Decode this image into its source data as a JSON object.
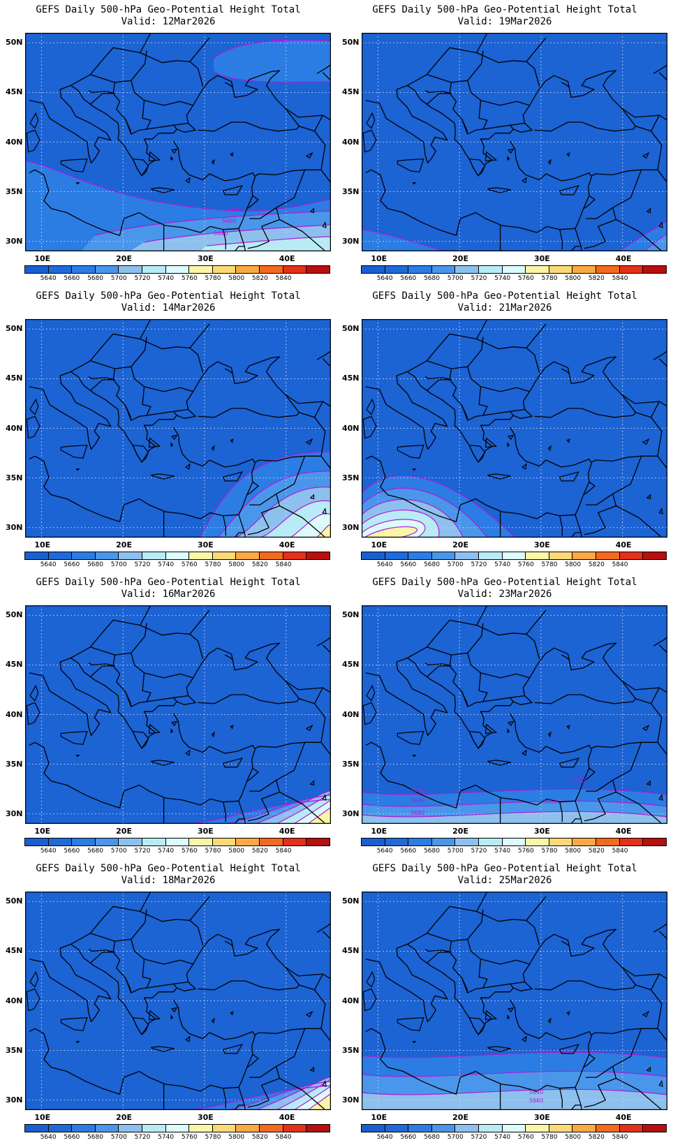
{
  "panels": [
    {
      "title": "GEFS Daily 500-hPa Geo-Potential Height Total",
      "valid": "Valid: 12Mar2026",
      "scenario": "north_south",
      "contour_labels": [
        "5640",
        "5640",
        "5660",
        "5680"
      ]
    },
    {
      "title": "GEFS Daily 500-hPa Geo-Potential Height Total",
      "valid": "Valid: 19Mar2026",
      "scenario": "corners",
      "contour_labels": []
    },
    {
      "title": "GEFS Daily 500-hPa Geo-Potential Height Total",
      "valid": "Valid: 14Mar2026",
      "scenario": "southeast",
      "contour_labels": []
    },
    {
      "title": "GEFS Daily 500-hPa Geo-Potential Height Total",
      "valid": "Valid: 21Mar2026",
      "scenario": "southwest",
      "contour_labels": []
    },
    {
      "title": "GEFS Daily 500-hPa Geo-Potential Height Total",
      "valid": "Valid: 16Mar2026",
      "scenario": "se_light",
      "contour_labels": []
    },
    {
      "title": "GEFS Daily 500-hPa Geo-Potential Height Total",
      "valid": "Valid: 23Mar2026",
      "scenario": "south_band",
      "contour_labels": [
        "5640",
        "5640",
        "5660",
        "5660",
        "5680"
      ]
    },
    {
      "title": "GEFS Daily 500-hPa Geo-Potential Height Total",
      "valid": "Valid: 18Mar2026",
      "scenario": "se_light2",
      "contour_labels": []
    },
    {
      "title": "GEFS Daily 500-hPa Geo-Potential Height Total",
      "valid": "Valid: 25Mar2026",
      "scenario": "south_band2",
      "contour_labels": [
        "5640",
        "5660"
      ]
    }
  ],
  "axes": {
    "lat_labels": [
      "50N",
      "45N",
      "40N",
      "35N",
      "30N"
    ],
    "lon_labels": [
      "10E",
      "20E",
      "30E",
      "40E"
    ]
  },
  "colorbar": {
    "labels": [
      "5640",
      "5660",
      "5680",
      "5700",
      "5720",
      "5740",
      "5760",
      "5780",
      "5800",
      "5820",
      "5840"
    ],
    "colors": [
      "#1a5fd0",
      "#1f6ad8",
      "#2b7de3",
      "#4a96ea",
      "#8ec0ee",
      "#b9ebf6",
      "#dcfbfa",
      "#fbf5a8",
      "#fbd977",
      "#fba944",
      "#f26a20",
      "#e5301a",
      "#b80f10"
    ]
  },
  "colors": {
    "base_fill": "#1c63d4",
    "contour": "#b01bd8",
    "coast": "#000000"
  }
}
